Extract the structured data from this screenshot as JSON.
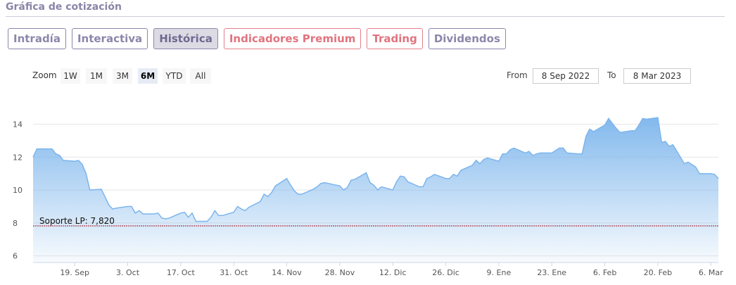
{
  "header": {
    "title": "Gráfica de cotización"
  },
  "tabs": [
    {
      "label": "Intradía",
      "state": "normal"
    },
    {
      "label": "Interactiva",
      "state": "normal"
    },
    {
      "label": "Histórica",
      "state": "active"
    },
    {
      "label": "Indicadores Premium",
      "state": "premium"
    },
    {
      "label": "Trading",
      "state": "premium"
    },
    {
      "label": "Dividendos",
      "state": "normal"
    }
  ],
  "zoom": {
    "label": "Zoom",
    "options": [
      "1W",
      "1M",
      "3M",
      "6M",
      "YTD",
      "All"
    ],
    "selected": "6M"
  },
  "range": {
    "from_label": "From",
    "from_value": "8 Sep 2022",
    "to_label": "To",
    "to_value": "8 Mar 2023"
  },
  "colors": {
    "tab_border": "#8d86aa",
    "tab_premium": "#e1747f",
    "series_line": "#7cb5ec",
    "support_line": "#a0101e"
  },
  "chart_data": {
    "type": "area",
    "x_start": "2022-09-08",
    "x_end": "2023-03-08",
    "x_ticks": [
      {
        "label": "19. Sep",
        "date": "2022-09-19"
      },
      {
        "label": "3. Oct",
        "date": "2022-10-03"
      },
      {
        "label": "17. Oct",
        "date": "2022-10-17"
      },
      {
        "label": "31. Oct",
        "date": "2022-10-31"
      },
      {
        "label": "14. Nov",
        "date": "2022-11-14"
      },
      {
        "label": "28. Nov",
        "date": "2022-11-28"
      },
      {
        "label": "12. Dic",
        "date": "2022-12-12"
      },
      {
        "label": "26. Dic",
        "date": "2022-12-26"
      },
      {
        "label": "9. Ene",
        "date": "2023-01-09"
      },
      {
        "label": "23. Ene",
        "date": "2023-01-23"
      },
      {
        "label": "6. Feb",
        "date": "2023-02-06"
      },
      {
        "label": "20. Feb",
        "date": "2023-02-20"
      },
      {
        "label": "6. Mar",
        "date": "2023-03-06"
      }
    ],
    "y_ticks": [
      6,
      8,
      10,
      12,
      14
    ],
    "ylim": [
      5.6,
      15.9
    ],
    "grid": true,
    "support_line": {
      "label": "Soporte LP: 7,820",
      "value": 7.82
    },
    "series": [
      {
        "points": [
          [
            "2022-09-08",
            12.0
          ],
          [
            "2022-09-09",
            12.5
          ],
          [
            "2022-09-12",
            12.5
          ],
          [
            "2022-09-13",
            12.5
          ],
          [
            "2022-09-14",
            12.2
          ],
          [
            "2022-09-15",
            12.1
          ],
          [
            "2022-09-16",
            11.8
          ],
          [
            "2022-09-19",
            11.75
          ],
          [
            "2022-09-20",
            11.8
          ],
          [
            "2022-09-21",
            11.55
          ],
          [
            "2022-09-22",
            11.0
          ],
          [
            "2022-09-23",
            10.0
          ],
          [
            "2022-09-26",
            10.05
          ],
          [
            "2022-09-27",
            9.6
          ],
          [
            "2022-09-28",
            9.1
          ],
          [
            "2022-09-29",
            8.85
          ],
          [
            "2022-09-30",
            8.9
          ],
          [
            "2022-10-03",
            9.0
          ],
          [
            "2022-10-04",
            9.0
          ],
          [
            "2022-10-05",
            8.6
          ],
          [
            "2022-10-06",
            8.75
          ],
          [
            "2022-10-07",
            8.55
          ],
          [
            "2022-10-10",
            8.55
          ],
          [
            "2022-10-11",
            8.6
          ],
          [
            "2022-10-12",
            8.3
          ],
          [
            "2022-10-13",
            8.25
          ],
          [
            "2022-10-14",
            8.3
          ],
          [
            "2022-10-17",
            8.6
          ],
          [
            "2022-10-18",
            8.65
          ],
          [
            "2022-10-19",
            8.35
          ],
          [
            "2022-10-20",
            8.6
          ],
          [
            "2022-10-21",
            8.1
          ],
          [
            "2022-10-24",
            8.1
          ],
          [
            "2022-10-25",
            8.35
          ],
          [
            "2022-10-26",
            8.75
          ],
          [
            "2022-10-27",
            8.45
          ],
          [
            "2022-10-28",
            8.45
          ],
          [
            "2022-10-31",
            8.65
          ],
          [
            "2022-11-01",
            9.0
          ],
          [
            "2022-11-02",
            8.85
          ],
          [
            "2022-11-03",
            8.75
          ],
          [
            "2022-11-04",
            8.95
          ],
          [
            "2022-11-07",
            9.3
          ],
          [
            "2022-11-08",
            9.75
          ],
          [
            "2022-11-09",
            9.6
          ],
          [
            "2022-11-10",
            9.85
          ],
          [
            "2022-11-11",
            10.25
          ],
          [
            "2022-11-14",
            10.7
          ],
          [
            "2022-11-15",
            10.3
          ],
          [
            "2022-11-16",
            9.95
          ],
          [
            "2022-11-17",
            9.75
          ],
          [
            "2022-11-18",
            9.75
          ],
          [
            "2022-11-21",
            10.05
          ],
          [
            "2022-11-22",
            10.2
          ],
          [
            "2022-11-23",
            10.4
          ],
          [
            "2022-11-24",
            10.45
          ],
          [
            "2022-11-25",
            10.4
          ],
          [
            "2022-11-28",
            10.25
          ],
          [
            "2022-11-29",
            10.0
          ],
          [
            "2022-11-30",
            10.15
          ],
          [
            "2022-12-01",
            10.6
          ],
          [
            "2022-12-02",
            10.65
          ],
          [
            "2022-12-05",
            11.05
          ],
          [
            "2022-12-06",
            10.45
          ],
          [
            "2022-12-07",
            10.3
          ],
          [
            "2022-12-08",
            10.0
          ],
          [
            "2022-12-09",
            10.2
          ],
          [
            "2022-12-12",
            10.0
          ],
          [
            "2022-12-13",
            10.5
          ],
          [
            "2022-12-14",
            10.85
          ],
          [
            "2022-12-15",
            10.8
          ],
          [
            "2022-12-16",
            10.5
          ],
          [
            "2022-12-19",
            10.2
          ],
          [
            "2022-12-20",
            10.2
          ],
          [
            "2022-12-21",
            10.7
          ],
          [
            "2022-12-22",
            10.8
          ],
          [
            "2022-12-23",
            10.95
          ],
          [
            "2022-12-26",
            10.7
          ],
          [
            "2022-12-27",
            10.7
          ],
          [
            "2022-12-28",
            10.95
          ],
          [
            "2022-12-29",
            10.85
          ],
          [
            "2022-12-30",
            11.2
          ],
          [
            "2023-01-02",
            11.5
          ],
          [
            "2023-01-03",
            11.8
          ],
          [
            "2023-01-04",
            11.6
          ],
          [
            "2023-01-05",
            11.85
          ],
          [
            "2023-01-06",
            11.95
          ],
          [
            "2023-01-09",
            11.75
          ],
          [
            "2023-01-10",
            12.2
          ],
          [
            "2023-01-11",
            12.2
          ],
          [
            "2023-01-12",
            12.45
          ],
          [
            "2023-01-13",
            12.55
          ],
          [
            "2023-01-16",
            12.25
          ],
          [
            "2023-01-17",
            12.35
          ],
          [
            "2023-01-18",
            12.1
          ],
          [
            "2023-01-19",
            12.2
          ],
          [
            "2023-01-20",
            12.25
          ],
          [
            "2023-01-23",
            12.25
          ],
          [
            "2023-01-24",
            12.4
          ],
          [
            "2023-01-25",
            12.55
          ],
          [
            "2023-01-26",
            12.55
          ],
          [
            "2023-01-27",
            12.25
          ],
          [
            "2023-01-30",
            12.2
          ],
          [
            "2023-01-31",
            12.2
          ],
          [
            "2023-02-01",
            13.25
          ],
          [
            "2023-02-02",
            13.7
          ],
          [
            "2023-02-03",
            13.55
          ],
          [
            "2023-02-06",
            13.95
          ],
          [
            "2023-02-07",
            14.35
          ],
          [
            "2023-02-08",
            14.05
          ],
          [
            "2023-02-09",
            13.75
          ],
          [
            "2023-02-10",
            13.5
          ],
          [
            "2023-02-13",
            13.6
          ],
          [
            "2023-02-14",
            13.6
          ],
          [
            "2023-02-15",
            13.95
          ],
          [
            "2023-02-16",
            14.35
          ],
          [
            "2023-02-17",
            14.3
          ],
          [
            "2023-02-20",
            14.4
          ],
          [
            "2023-02-21",
            12.9
          ],
          [
            "2023-02-22",
            12.95
          ],
          [
            "2023-02-23",
            12.65
          ],
          [
            "2023-02-24",
            12.75
          ],
          [
            "2023-02-27",
            11.6
          ],
          [
            "2023-02-28",
            11.7
          ],
          [
            "2023-03-01",
            11.55
          ],
          [
            "2023-03-02",
            11.4
          ],
          [
            "2023-03-03",
            11.0
          ],
          [
            "2023-03-06",
            11.0
          ],
          [
            "2023-03-07",
            10.95
          ],
          [
            "2023-03-08",
            10.7
          ]
        ]
      }
    ]
  }
}
